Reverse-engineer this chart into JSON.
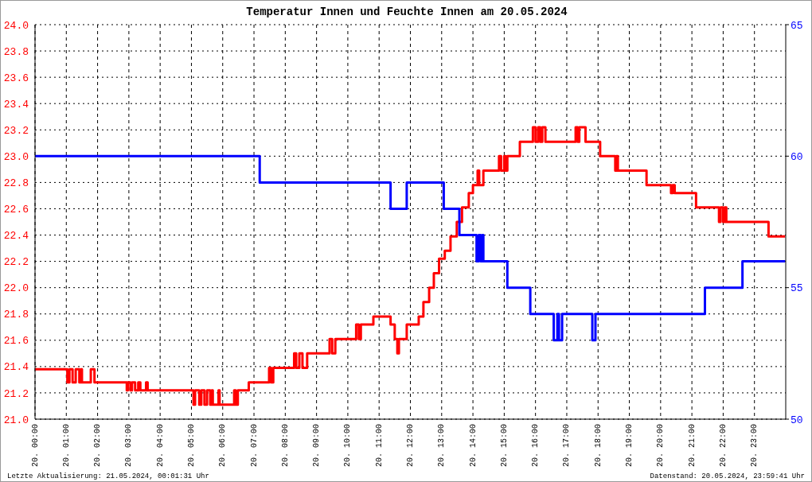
{
  "chart_data": {
    "type": "step",
    "title": "Temperatur Innen und Feuchte Innen am 20.05.2024",
    "annotations": [
      "Letzte Aktualisierung: 21.05.2024, 00:01:31 Uhr",
      "Datenstand: 20.05.2024, 23:59:41 Uhr"
    ],
    "xlim": [
      "2024-05-20T00:00",
      "2024-05-21T00:00"
    ],
    "xticks": [
      {
        "value": "2024-05-20T00:00",
        "label": "20. 00:00"
      },
      {
        "value": "2024-05-20T01:00",
        "label": "20. 01:00"
      },
      {
        "value": "2024-05-20T02:00",
        "label": "20. 02:00"
      },
      {
        "value": "2024-05-20T03:00",
        "label": "20. 03:00"
      },
      {
        "value": "2024-05-20T04:00",
        "label": "20. 04:00"
      },
      {
        "value": "2024-05-20T05:00",
        "label": "20. 05:00"
      },
      {
        "value": "2024-05-20T06:00",
        "label": "20. 06:00"
      },
      {
        "value": "2024-05-20T07:00",
        "label": "20. 07:00"
      },
      {
        "value": "2024-05-20T08:00",
        "label": "20. 08:00"
      },
      {
        "value": "2024-05-20T09:00",
        "label": "20. 09:00"
      },
      {
        "value": "2024-05-20T10:00",
        "label": "20. 10:00"
      },
      {
        "value": "2024-05-20T11:00",
        "label": "20. 11:00"
      },
      {
        "value": "2024-05-20T12:00",
        "label": "20. 12:00"
      },
      {
        "value": "2024-05-20T13:00",
        "label": "20. 13:00"
      },
      {
        "value": "2024-05-20T14:00",
        "label": "20. 14:00"
      },
      {
        "value": "2024-05-20T15:00",
        "label": "20. 15:00"
      },
      {
        "value": "2024-05-20T16:00",
        "label": "20. 16:00"
      },
      {
        "value": "2024-05-20T17:00",
        "label": "20. 17:00"
      },
      {
        "value": "2024-05-20T18:00",
        "label": "20. 18:00"
      },
      {
        "value": "2024-05-20T19:00",
        "label": "20. 19:00"
      },
      {
        "value": "2024-05-20T20:00",
        "label": "20. 20:00"
      },
      {
        "value": "2024-05-20T21:00",
        "label": "20. 21:00"
      },
      {
        "value": "2024-05-20T22:00",
        "label": "20. 22:00"
      },
      {
        "value": "2024-05-20T23:00",
        "label": "20. 23:00"
      }
    ],
    "ylim": [
      21,
      24
    ],
    "yticks": [
      {
        "value": 21,
        "label": "21.0"
      },
      {
        "value": 21.2,
        "label": "21.2"
      },
      {
        "value": 21.4,
        "label": "21.4"
      },
      {
        "value": 21.6,
        "label": "21.6"
      },
      {
        "value": 21.8,
        "label": "21.8"
      },
      {
        "value": 22,
        "label": "22.0"
      },
      {
        "value": 22.2,
        "label": "22.2"
      },
      {
        "value": 22.4,
        "label": "22.4"
      },
      {
        "value": 22.6,
        "label": "22.6"
      },
      {
        "value": 22.8,
        "label": "22.8"
      },
      {
        "value": 23,
        "label": "23.0"
      },
      {
        "value": 23.2,
        "label": "23.2"
      },
      {
        "value": 23.4,
        "label": "23.4"
      },
      {
        "value": 23.6,
        "label": "23.6"
      },
      {
        "value": 23.8,
        "label": "23.8"
      },
      {
        "value": 24,
        "label": "24.0"
      }
    ],
    "y2lim": [
      50,
      65
    ],
    "y2ticks": [
      50,
      55,
      60,
      65
    ],
    "grid": true,
    "line_style": "solid",
    "series": [
      {
        "color": "#ff0000",
        "x": [
          "2024-05-20T00:00",
          "2024-05-20T01:02",
          "2024-05-20T01:06",
          "2024-05-20T01:12",
          "2024-05-20T01:18",
          "2024-05-20T01:25",
          "2024-05-20T01:28",
          "2024-05-20T01:30",
          "2024-05-20T01:47",
          "2024-05-20T01:54",
          "2024-05-20T02:56",
          "2024-05-20T02:58",
          "2024-05-20T03:03",
          "2024-05-20T03:06",
          "2024-05-20T03:12",
          "2024-05-20T03:18",
          "2024-05-20T03:22",
          "2024-05-20T03:33",
          "2024-05-20T03:36",
          "2024-05-20T05:04",
          "2024-05-20T05:07",
          "2024-05-20T05:15",
          "2024-05-20T05:19",
          "2024-05-20T05:25",
          "2024-05-20T05:30",
          "2024-05-20T05:36",
          "2024-05-20T05:39",
          "2024-05-20T05:41",
          "2024-05-20T05:52",
          "2024-05-20T05:54",
          "2024-05-20T06:22",
          "2024-05-20T06:25",
          "2024-05-20T06:29",
          "2024-05-20T06:50",
          "2024-05-20T07:29",
          "2024-05-20T07:33",
          "2024-05-20T07:37",
          "2024-05-20T08:17",
          "2024-05-20T08:21",
          "2024-05-20T08:27",
          "2024-05-20T08:33",
          "2024-05-20T08:42",
          "2024-05-20T09:25",
          "2024-05-20T09:30",
          "2024-05-20T09:36",
          "2024-05-20T10:16",
          "2024-05-20T10:21",
          "2024-05-20T10:25",
          "2024-05-20T10:49",
          "2024-05-20T11:22",
          "2024-05-20T11:30",
          "2024-05-20T11:35",
          "2024-05-20T11:38",
          "2024-05-20T11:53",
          "2024-05-20T12:16",
          "2024-05-20T12:25",
          "2024-05-20T12:36",
          "2024-05-20T12:45",
          "2024-05-20T12:55",
          "2024-05-20T13:06",
          "2024-05-20T13:17",
          "2024-05-20T13:29",
          "2024-05-20T13:39",
          "2024-05-20T13:52",
          "2024-05-20T14:00",
          "2024-05-20T14:09",
          "2024-05-20T14:12",
          "2024-05-20T14:20",
          "2024-05-20T14:50",
          "2024-05-20T14:54",
          "2024-05-20T15:00",
          "2024-05-20T15:03",
          "2024-05-20T15:06",
          "2024-05-20T15:30",
          "2024-05-20T15:55",
          "2024-05-20T16:00",
          "2024-05-20T16:05",
          "2024-05-20T16:09",
          "2024-05-20T16:13",
          "2024-05-20T16:19",
          "2024-05-20T17:17",
          "2024-05-20T17:21",
          "2024-05-20T17:24",
          "2024-05-20T17:36",
          "2024-05-20T18:04",
          "2024-05-20T18:33",
          "2024-05-20T18:35",
          "2024-05-20T18:38",
          "2024-05-20T19:33",
          "2024-05-20T20:20",
          "2024-05-20T20:23",
          "2024-05-20T20:27",
          "2024-05-20T21:08",
          "2024-05-20T21:52",
          "2024-05-20T21:55",
          "2024-05-20T22:00",
          "2024-05-20T22:03",
          "2024-05-20T22:06",
          "2024-05-20T23:27",
          "2024-05-20T23:59"
        ],
        "values": [
          21.38,
          21.28,
          21.38,
          21.28,
          21.38,
          21.28,
          21.38,
          21.28,
          21.38,
          21.28,
          21.22,
          21.28,
          21.22,
          21.28,
          21.22,
          21.28,
          21.22,
          21.28,
          21.22,
          21.11,
          21.22,
          21.11,
          21.22,
          21.11,
          21.22,
          21.11,
          21.22,
          21.11,
          21.22,
          21.11,
          21.22,
          21.11,
          21.22,
          21.28,
          21.39,
          21.28,
          21.39,
          21.5,
          21.39,
          21.5,
          21.39,
          21.5,
          21.61,
          21.5,
          21.61,
          21.72,
          21.61,
          21.72,
          21.78,
          21.72,
          21.61,
          21.5,
          21.61,
          21.72,
          21.78,
          21.89,
          22.0,
          22.11,
          22.22,
          22.28,
          22.39,
          22.5,
          22.61,
          22.72,
          22.78,
          22.89,
          22.78,
          22.89,
          23.0,
          22.89,
          23.0,
          22.89,
          23.0,
          23.11,
          23.22,
          23.11,
          23.22,
          23.11,
          23.22,
          23.11,
          23.22,
          23.11,
          23.22,
          23.11,
          23.0,
          22.89,
          23.0,
          22.89,
          22.78,
          22.72,
          22.78,
          22.72,
          22.61,
          22.5,
          22.61,
          22.5,
          22.61,
          22.5,
          22.39,
          22.39
        ]
      },
      {
        "color": "#0000ff",
        "axis": "y2",
        "x": [
          "2024-05-20T00:00",
          "2024-05-20T07:11",
          "2024-05-20T11:22",
          "2024-05-20T11:53",
          "2024-05-20T13:04",
          "2024-05-20T13:34",
          "2024-05-20T14:07",
          "2024-05-20T14:11",
          "2024-05-20T14:15",
          "2024-05-20T14:18",
          "2024-05-20T14:20",
          "2024-05-20T15:06",
          "2024-05-20T15:50",
          "2024-05-20T16:35",
          "2024-05-20T16:42",
          "2024-05-20T16:45",
          "2024-05-20T16:51",
          "2024-05-20T17:49",
          "2024-05-20T17:55",
          "2024-05-20T21:25",
          "2024-05-20T22:37",
          "2024-05-20T23:59"
        ],
        "values": [
          60,
          59,
          58,
          59,
          58,
          57,
          56,
          57,
          56,
          57,
          56,
          55,
          54,
          53,
          54,
          53,
          54,
          53,
          54,
          55,
          56,
          56
        ]
      }
    ]
  }
}
